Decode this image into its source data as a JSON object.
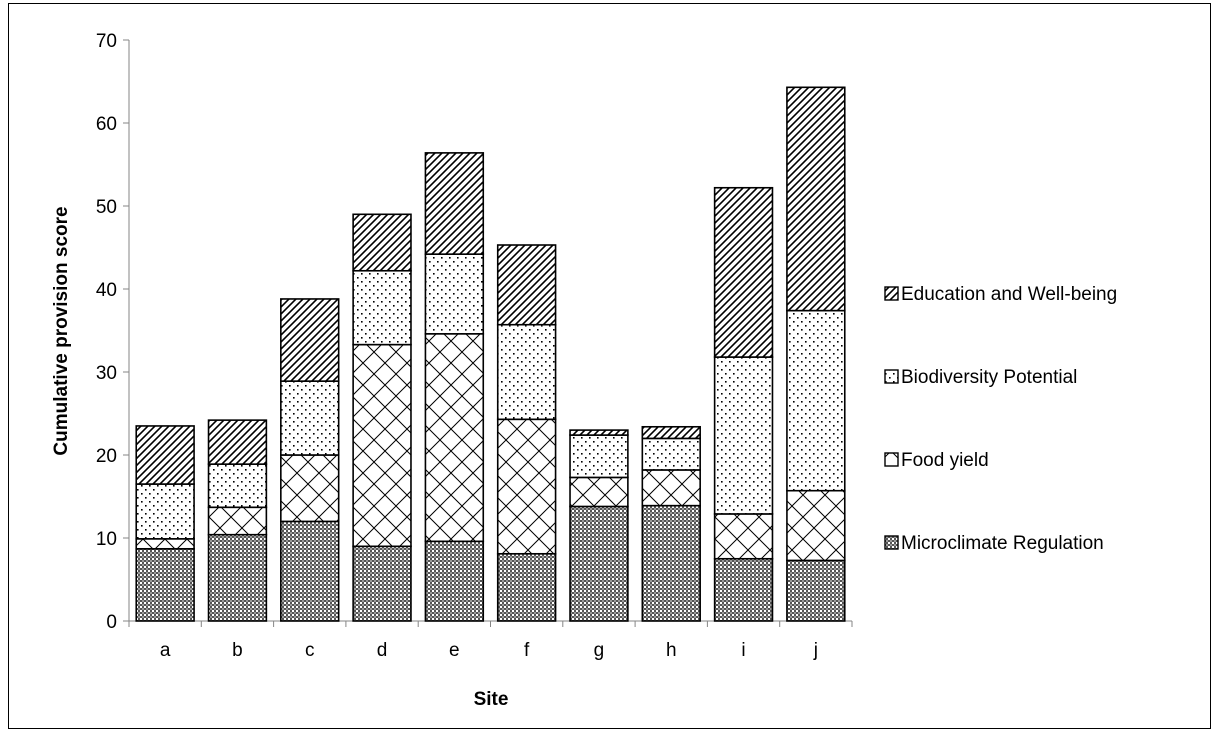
{
  "chart_data": {
    "type": "bar",
    "stacked": true,
    "title": "",
    "xlabel": "Site",
    "ylabel": "Cumulative provision score",
    "ylim": [
      0,
      70
    ],
    "yticks": [
      0,
      10,
      20,
      30,
      40,
      50,
      60,
      70
    ],
    "grid": false,
    "legend_position": "right",
    "categories": [
      "a",
      "b",
      "c",
      "d",
      "e",
      "f",
      "g",
      "h",
      "i",
      "j"
    ],
    "series": [
      {
        "name": "Microclimate Regulation",
        "pattern": "checker",
        "values": [
          8.7,
          10.4,
          12.0,
          9.0,
          9.6,
          8.1,
          13.8,
          13.9,
          7.5,
          7.3
        ]
      },
      {
        "name": "Food yield",
        "pattern": "crosshatch",
        "values": [
          1.2,
          3.3,
          8.0,
          24.3,
          25.0,
          16.2,
          3.5,
          4.3,
          5.4,
          8.4
        ]
      },
      {
        "name": "Biodiversity Potential",
        "pattern": "dots",
        "values": [
          6.6,
          5.2,
          8.9,
          8.9,
          9.6,
          11.4,
          5.1,
          3.8,
          18.9,
          21.7
        ]
      },
      {
        "name": "Education and Well-being",
        "pattern": "diagonal",
        "values": [
          7.0,
          5.3,
          9.9,
          6.8,
          12.2,
          9.6,
          0.6,
          1.4,
          20.4,
          26.9
        ]
      }
    ],
    "legend_order": [
      "Education and Well-being",
      "Biodiversity Potential",
      "Food yield",
      "Microclimate Regulation"
    ],
    "colors": {
      "bar_outline": "#000000",
      "pattern_ink": "#000000",
      "background": "#ffffff"
    }
  }
}
